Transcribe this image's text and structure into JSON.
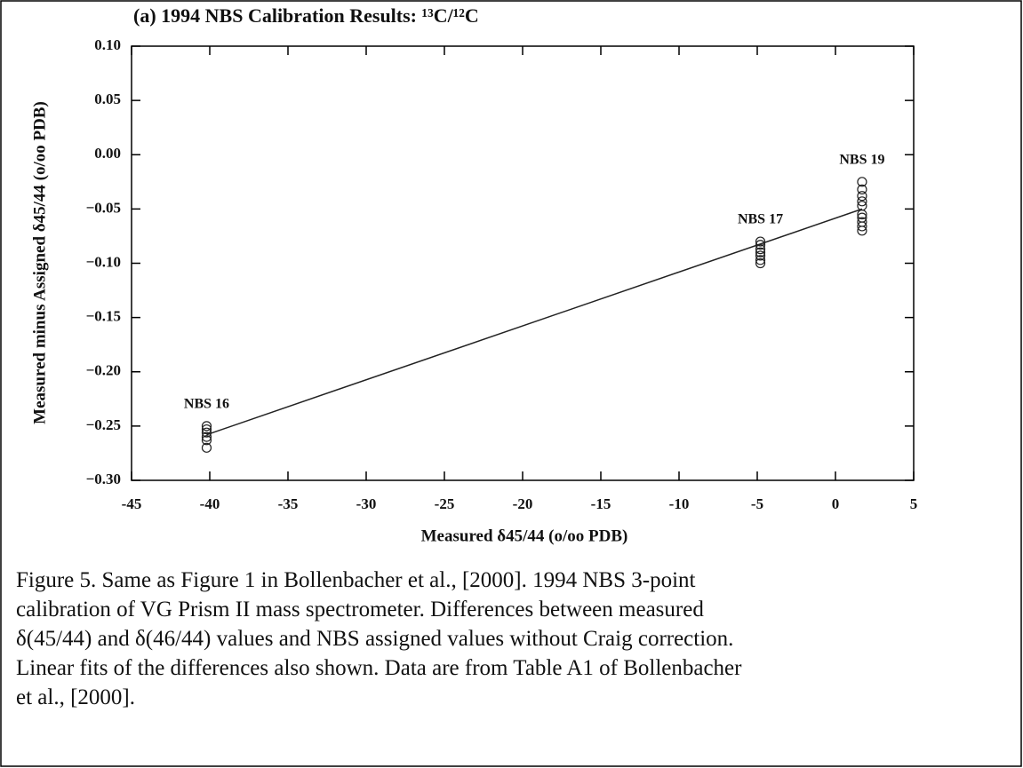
{
  "chart_data": {
    "type": "scatter",
    "title": "(a) 1994 NBS Calibration Results:  ¹³C/¹²C",
    "x_label": "Measured δ45/44 (o/oo PDB)",
    "y_label": "Measured minus Assigned δ45/44 (o/oo PDB)",
    "xlim": [
      -45,
      5
    ],
    "ylim": [
      -0.3,
      0.1
    ],
    "xticks": [
      -45,
      -40,
      -35,
      -30,
      -25,
      -20,
      -15,
      -10,
      -5,
      0,
      5
    ],
    "yticks": [
      {
        "value": 0.1,
        "label": "0.10"
      },
      {
        "value": 0.05,
        "label": "0.05"
      },
      {
        "value": 0,
        "label": "0.00"
      },
      {
        "value": -0.05,
        "label": "−0.05"
      },
      {
        "value": -0.1,
        "label": "−0.10"
      },
      {
        "value": -0.15,
        "label": "−0.15"
      },
      {
        "value": -0.2,
        "label": "−0.20"
      },
      {
        "value": -0.25,
        "label": "−0.25"
      },
      {
        "value": -0.3,
        "label": "−0.30"
      }
    ],
    "series": [
      {
        "name": "NBS 16",
        "color": "#222",
        "x": [
          -40.2,
          -40.2,
          -40.2,
          -40.2,
          -40.2,
          -40.2
        ],
        "values": [
          -0.25,
          -0.253,
          -0.256,
          -0.26,
          -0.263,
          -0.27
        ]
      },
      {
        "name": "NBS 17",
        "color": "#222",
        "x": [
          -4.8,
          -4.8,
          -4.8,
          -4.8,
          -4.8,
          -4.8,
          -4.8
        ],
        "values": [
          -0.08,
          -0.083,
          -0.087,
          -0.09,
          -0.093,
          -0.097,
          -0.1
        ]
      },
      {
        "name": "NBS 19",
        "color": "#222",
        "x": [
          1.7,
          1.7,
          1.7,
          1.7,
          1.7,
          1.7,
          1.7,
          1.7,
          1.7,
          1.7
        ],
        "values": [
          -0.025,
          -0.032,
          -0.038,
          -0.043,
          -0.047,
          -0.055,
          -0.058,
          -0.062,
          -0.066,
          -0.07
        ]
      }
    ],
    "fit_line": {
      "x": [
        -40.2,
        1.7
      ],
      "values": [
        -0.258,
        -0.05
      ],
      "color": "#222"
    }
  },
  "caption": [
    "Figure 5. Same as Figure 1 in Bollenbacher et al., [2000].  1994 NBS 3-point",
    "calibration of VG Prism II mass spectrometer.  Differences between measured",
    "δ(45/44) and δ(46/44) values and NBS assigned values without Craig correction.",
    "Linear fits of the differences also shown. Data are from Table A1 of Bollenbacher",
    "et al., [2000]."
  ]
}
